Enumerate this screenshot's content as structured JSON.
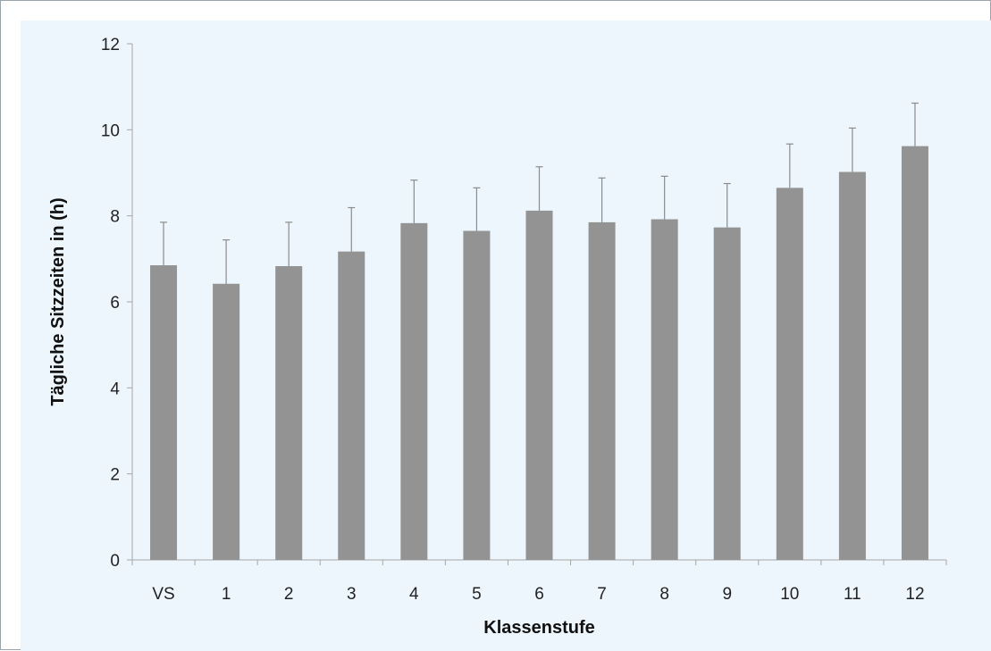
{
  "chart_data": {
    "type": "bar",
    "title": "",
    "xlabel": "Klassenstufe",
    "ylabel": "Tägliche Sitzzeiten in (h)",
    "ylim": [
      0,
      12
    ],
    "yticks": [
      "0",
      "2",
      "4",
      "6",
      "8",
      "10",
      "12"
    ],
    "categories": [
      "VS",
      "1",
      "2",
      "3",
      "4",
      "5",
      "6",
      "7",
      "8",
      "9",
      "10",
      "11",
      "12"
    ],
    "values": [
      6.85,
      6.42,
      6.83,
      7.17,
      7.83,
      7.65,
      8.12,
      7.85,
      7.92,
      7.73,
      8.65,
      9.02,
      9.62
    ],
    "error_upper": [
      1.0,
      1.02,
      1.02,
      1.02,
      1.0,
      1.0,
      1.02,
      1.03,
      1.0,
      1.02,
      1.02,
      1.02,
      1.0
    ],
    "grid": false,
    "legend": "none",
    "colors": {
      "bar": "#939393",
      "error_bar": "#8c8c8c",
      "background": "#edf6fc",
      "axis": "#a6a6a6"
    }
  }
}
